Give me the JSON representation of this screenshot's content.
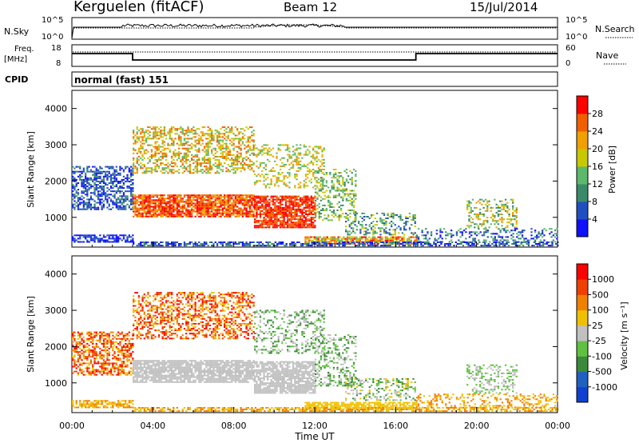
{
  "header": {
    "station": "Kerguelen (fitACF)",
    "beam": "Beam 12",
    "date": "15/Jul/2014"
  },
  "panels": {
    "nsky": {
      "label": "N.Sky",
      "left_ticks": [
        "10^5",
        "10^0"
      ],
      "right_label": "N.Search",
      "right_ticks": [
        "10^5",
        "10^0"
      ]
    },
    "freq": {
      "label_top": "Freq.",
      "label_bottom": "[MHz]",
      "left_ticks": [
        "18",
        "8"
      ],
      "right_label": "Nave",
      "right_ticks": [
        "60",
        "0"
      ],
      "segments": [
        {
          "start_h": 0,
          "end_h": 3,
          "level": "high"
        },
        {
          "start_h": 3,
          "end_h": 17,
          "level": "low"
        },
        {
          "start_h": 17,
          "end_h": 24,
          "level": "high"
        }
      ]
    },
    "cpid": {
      "label": "CPID",
      "value": "normal (fast) 151"
    }
  },
  "chart_data": [
    {
      "type": "heatmap",
      "name": "Power",
      "ylabel": "Slant Range [km]",
      "xlabel": "",
      "ylim": [
        180,
        4500
      ],
      "y_ticks": [
        "1000",
        "2000",
        "3000",
        "4000"
      ],
      "xlim_hours": [
        0,
        24
      ],
      "colorbar": {
        "label": "Power [dB]",
        "ticks": [
          "4",
          "8",
          "12",
          "16",
          "20",
          "24",
          "28"
        ],
        "colors": [
          "#1010ff",
          "#2050c0",
          "#3a8a6a",
          "#5cb86a",
          "#c8c800",
          "#f0a000",
          "#f06000",
          "#ff0000"
        ]
      }
    },
    {
      "type": "heatmap",
      "name": "Velocity",
      "ylabel": "Slant Range [km]",
      "xlabel": "Time UT",
      "ylim": [
        180,
        4500
      ],
      "y_ticks": [
        "1000",
        "2000",
        "3000",
        "4000"
      ],
      "x_ticks": [
        "00:00",
        "04:00",
        "08:00",
        "12:00",
        "16:00",
        "20:00",
        "00:00"
      ],
      "xlim_hours": [
        0,
        24
      ],
      "colorbar": {
        "label": "Velocity [m s⁻¹]",
        "ticks": [
          "1000",
          "500",
          "100",
          "25",
          "-25",
          "-100",
          "-500",
          "-1000"
        ],
        "colors": [
          "#1040d0",
          "#2060c0",
          "#3a8a3a",
          "#60c040",
          "#c0c0c0",
          "#f0c000",
          "#f08000",
          "#f04000",
          "#ff0000"
        ]
      }
    }
  ]
}
